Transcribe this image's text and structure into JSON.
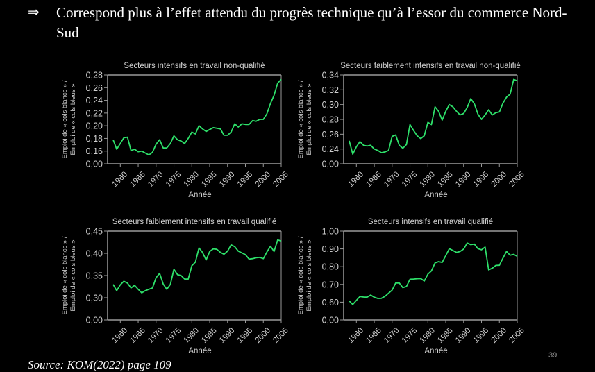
{
  "slide": {
    "arrow": "⇒",
    "headline": "Correspond plus à l’effet attendu du progrès technique qu’à l’essor du commerce Nord-Sud",
    "page_number": "39",
    "source": "Source: KOM(2022) page 109",
    "line_color": "#2ee06a",
    "axis_color": "#9a9a9a",
    "text_color": "#d0d0d0"
  },
  "chart_data": [
    {
      "type": "line",
      "title": "Secteurs intensifs en travail non-qualifié",
      "xlabel": "Année",
      "ylabel": [
        "Emploi de « cols blancs » /",
        "Emploi de « cols bleus »"
      ],
      "x_ticks": [
        "1960",
        "1965",
        "1970",
        "1975",
        "1980",
        "1985",
        "1990",
        "1995",
        "2000",
        "2005"
      ],
      "y_ticks": [
        "0,00",
        "0,16",
        "0,18",
        "0,20",
        "0,22",
        "0,24",
        "0,26",
        "0,28"
      ],
      "y_tick_values": [
        0.0,
        0.16,
        0.18,
        0.2,
        0.22,
        0.24,
        0.26,
        0.28
      ],
      "y_axis_break": true,
      "xlim": [
        1958,
        2005
      ],
      "x": [
        1958,
        1959,
        1960,
        1961,
        1962,
        1963,
        1964,
        1965,
        1966,
        1967,
        1968,
        1969,
        1970,
        1971,
        1972,
        1973,
        1974,
        1975,
        1976,
        1977,
        1978,
        1979,
        1980,
        1981,
        1982,
        1983,
        1984,
        1985,
        1986,
        1987,
        1988,
        1989,
        1990,
        1991,
        1992,
        1993,
        1994,
        1995,
        1996,
        1997,
        1998,
        1999,
        2000,
        2001,
        2002,
        2003,
        2004,
        2005
      ],
      "values": [
        0.178,
        0.163,
        0.172,
        0.181,
        0.182,
        0.161,
        0.163,
        0.159,
        0.16,
        0.157,
        0.154,
        0.158,
        0.171,
        0.178,
        0.165,
        0.165,
        0.172,
        0.184,
        0.178,
        0.176,
        0.172,
        0.18,
        0.19,
        0.187,
        0.2,
        0.195,
        0.191,
        0.194,
        0.197,
        0.196,
        0.195,
        0.185,
        0.185,
        0.19,
        0.203,
        0.198,
        0.203,
        0.202,
        0.202,
        0.208,
        0.207,
        0.21,
        0.21,
        0.219,
        0.235,
        0.248,
        0.267,
        0.273
      ]
    },
    {
      "type": "line",
      "title": "Secteurs faiblement intensifs en travail non-qualifié",
      "xlabel": "Année",
      "ylabel": [
        "Emploi de « cols blancs » /",
        "Emploi de « cols bleus »"
      ],
      "x_ticks": [
        "1960",
        "1965",
        "1970",
        "1975",
        "1980",
        "1985",
        "1990",
        "1995",
        "2000",
        "2005"
      ],
      "y_ticks": [
        "0,00",
        "0,24",
        "0,26",
        "0,28",
        "0,30",
        "0,32",
        "0,34"
      ],
      "y_tick_values": [
        0.0,
        0.24,
        0.26,
        0.28,
        0.3,
        0.32,
        0.34
      ],
      "y_axis_break": true,
      "xlim": [
        1958,
        2005
      ],
      "x": [
        1958,
        1959,
        1960,
        1961,
        1962,
        1963,
        1964,
        1965,
        1966,
        1967,
        1968,
        1969,
        1970,
        1971,
        1972,
        1973,
        1974,
        1975,
        1976,
        1977,
        1978,
        1979,
        1980,
        1981,
        1982,
        1983,
        1984,
        1985,
        1986,
        1987,
        1988,
        1989,
        1990,
        1991,
        1992,
        1993,
        1994,
        1995,
        1996,
        1997,
        1998,
        1999,
        2000,
        2001,
        2002,
        2003,
        2004,
        2005
      ],
      "values": [
        0.251,
        0.233,
        0.243,
        0.25,
        0.245,
        0.244,
        0.245,
        0.24,
        0.238,
        0.235,
        0.236,
        0.238,
        0.257,
        0.259,
        0.245,
        0.241,
        0.246,
        0.273,
        0.265,
        0.258,
        0.254,
        0.258,
        0.276,
        0.273,
        0.297,
        0.291,
        0.279,
        0.291,
        0.3,
        0.297,
        0.291,
        0.286,
        0.288,
        0.296,
        0.308,
        0.301,
        0.287,
        0.28,
        0.286,
        0.293,
        0.286,
        0.289,
        0.29,
        0.302,
        0.31,
        0.314,
        0.334,
        0.332
      ]
    },
    {
      "type": "line",
      "title": "Secteurs faiblement intensifs en travail qualifié",
      "xlabel": "Année",
      "ylabel": [
        "Emploi de « cols blancs » /",
        "Emploi de « cols bleus »"
      ],
      "x_ticks": [
        "1960",
        "1965",
        "1970",
        "1975",
        "1980",
        "1985",
        "1990",
        "1995",
        "2000",
        "2005"
      ],
      "y_ticks": [
        "0,00",
        "0,30",
        "0,35",
        "0,40",
        "0,45"
      ],
      "y_tick_values": [
        0.0,
        0.3,
        0.35,
        0.4,
        0.45
      ],
      "y_axis_break": true,
      "xlim": [
        1958,
        2005
      ],
      "x": [
        1958,
        1959,
        1960,
        1961,
        1962,
        1963,
        1964,
        1965,
        1966,
        1967,
        1968,
        1969,
        1970,
        1971,
        1972,
        1973,
        1974,
        1975,
        1976,
        1977,
        1978,
        1979,
        1980,
        1981,
        1982,
        1983,
        1984,
        1985,
        1986,
        1987,
        1988,
        1989,
        1990,
        1991,
        1992,
        1993,
        1994,
        1995,
        1996,
        1997,
        1998,
        1999,
        2000,
        2001,
        2002,
        2003,
        2004,
        2005
      ],
      "values": [
        0.33,
        0.316,
        0.329,
        0.337,
        0.333,
        0.322,
        0.328,
        0.319,
        0.311,
        0.316,
        0.319,
        0.322,
        0.345,
        0.355,
        0.331,
        0.319,
        0.33,
        0.364,
        0.352,
        0.35,
        0.342,
        0.342,
        0.372,
        0.38,
        0.412,
        0.402,
        0.385,
        0.404,
        0.41,
        0.409,
        0.402,
        0.398,
        0.405,
        0.419,
        0.415,
        0.405,
        0.401,
        0.397,
        0.387,
        0.388,
        0.39,
        0.391,
        0.388,
        0.403,
        0.416,
        0.404,
        0.43,
        0.428
      ]
    },
    {
      "type": "line",
      "title": "Secteurs intensifs en travail qualifié",
      "xlabel": "Année",
      "ylabel": [
        "Emploi de « cols blancs » /",
        "Emploi de « cols bleus »"
      ],
      "x_ticks": [
        "1960",
        "1965",
        "1970",
        "1975",
        "1980",
        "1985",
        "1990",
        "1995",
        "2000",
        "2005"
      ],
      "y_ticks": [
        "0,00",
        "0,60",
        "0,70",
        "0,80",
        "0,90",
        "1,00"
      ],
      "y_tick_values": [
        0.0,
        0.6,
        0.7,
        0.8,
        0.9,
        1.0
      ],
      "y_axis_break": true,
      "xlim": [
        1958,
        2005
      ],
      "x": [
        1958,
        1959,
        1960,
        1961,
        1962,
        1963,
        1964,
        1965,
        1966,
        1967,
        1968,
        1969,
        1970,
        1971,
        1972,
        1973,
        1974,
        1975,
        1976,
        1977,
        1978,
        1979,
        1980,
        1981,
        1982,
        1983,
        1984,
        1985,
        1986,
        1987,
        1988,
        1989,
        1990,
        1991,
        1992,
        1993,
        1994,
        1995,
        1996,
        1997,
        1998,
        1999,
        2000,
        2001,
        2002,
        2003,
        2004,
        2005
      ],
      "values": [
        0.607,
        0.587,
        0.61,
        0.632,
        0.629,
        0.628,
        0.64,
        0.628,
        0.621,
        0.622,
        0.633,
        0.65,
        0.668,
        0.708,
        0.708,
        0.682,
        0.688,
        0.729,
        0.73,
        0.732,
        0.733,
        0.719,
        0.758,
        0.776,
        0.821,
        0.828,
        0.824,
        0.862,
        0.901,
        0.891,
        0.88,
        0.885,
        0.899,
        0.933,
        0.924,
        0.927,
        0.901,
        0.895,
        0.91,
        0.782,
        0.791,
        0.807,
        0.808,
        0.848,
        0.886,
        0.864,
        0.869,
        0.858
      ]
    }
  ]
}
